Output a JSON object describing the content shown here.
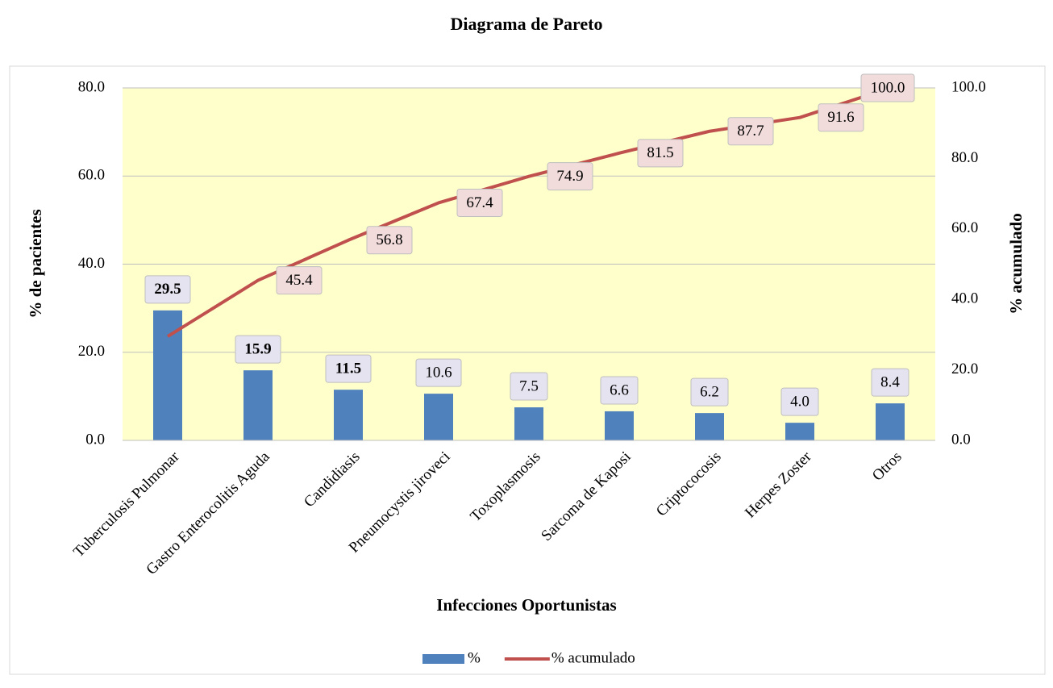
{
  "chart_data": {
    "type": "pareto",
    "title": "Diagrama de Pareto",
    "x_label": "Infecciones Oportunistas",
    "y_label": "% de pacientes",
    "y2_label": "% acumulado",
    "categories": [
      "Tuberculosis Pulmonar",
      "Gastro Enterocolitis Aguda",
      "Candidiasis",
      "Pneumocystis jiroveci",
      "Toxoplasmosis",
      "Sarcoma de Kaposi",
      "Criptococosis",
      "Herpes Zoster",
      "Otros"
    ],
    "series": [
      {
        "name": "%",
        "type": "bar",
        "color": "#4f81bd",
        "values": [
          29.5,
          15.9,
          11.5,
          10.6,
          7.5,
          6.6,
          6.2,
          4.0,
          8.4
        ],
        "value_labels": [
          "29.5",
          "15.9",
          "11.5",
          "10.6",
          "7.5",
          "6.6",
          "6.2",
          "4.0",
          "8.4"
        ],
        "value_label_bold": [
          true,
          true,
          true,
          false,
          false,
          false,
          false,
          false,
          false
        ]
      },
      {
        "name": "% acumulado",
        "type": "line",
        "axis": "y2",
        "color": "#c0504d",
        "values": [
          29.5,
          45.4,
          56.8,
          67.4,
          74.9,
          81.5,
          87.7,
          91.6,
          100.0
        ],
        "value_labels": [
          null,
          "45.4",
          "56.8",
          "67.4",
          "74.9",
          "81.5",
          "87.7",
          "91.6",
          "100.0"
        ]
      }
    ],
    "ylim": [
      0,
      80
    ],
    "yticks": [
      {
        "value": 0,
        "label": "0.0"
      },
      {
        "value": 20,
        "label": "20.0"
      },
      {
        "value": 40,
        "label": "40.0"
      },
      {
        "value": 60,
        "label": "60.0"
      },
      {
        "value": 80,
        "label": "80.0"
      }
    ],
    "y2lim": [
      0,
      100
    ],
    "y2ticks": [
      {
        "value": 0,
        "label": "0.0"
      },
      {
        "value": 20,
        "label": "20.0"
      },
      {
        "value": 40,
        "label": "40.0"
      },
      {
        "value": 60,
        "label": "60.0"
      },
      {
        "value": 80,
        "label": "80.0"
      },
      {
        "value": 100,
        "label": "100.0"
      }
    ],
    "grid": true,
    "legend": "bottom"
  }
}
